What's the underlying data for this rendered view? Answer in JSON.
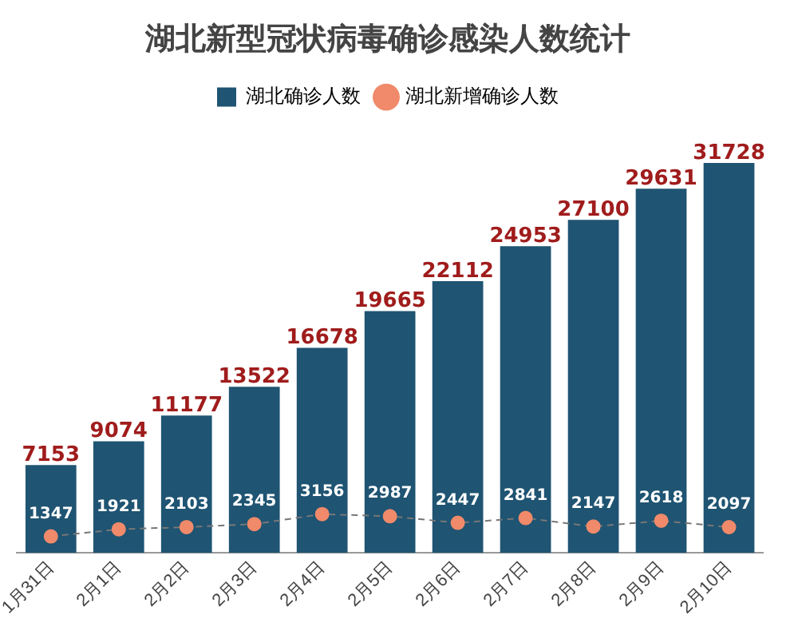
{
  "chart_data": {
    "type": "bar",
    "title": "湖北新型冠状病毒确诊感染人数统计",
    "categories": [
      "1月31日",
      "2月1日",
      "2月2日",
      "2月3日",
      "2月4日",
      "2月5日",
      "2月6日",
      "2月7日",
      "2月8日",
      "2月9日",
      "2月10日"
    ],
    "series": [
      {
        "name": "湖北确诊人数",
        "color": "#1f5472",
        "values": [
          7153,
          9074,
          11177,
          13522,
          16678,
          19665,
          22112,
          24953,
          27100,
          29631,
          31728
        ]
      },
      {
        "name": "湖北新增确诊人数",
        "type": "line",
        "color": "#f08a6a",
        "line_style": "dashed",
        "marker": "circle",
        "values": [
          1347,
          1921,
          2103,
          2345,
          3156,
          2987,
          2447,
          2841,
          2147,
          2618,
          2097
        ]
      }
    ],
    "data_labels": true,
    "legend": "top",
    "grid": false,
    "tick_labels": "x"
  }
}
